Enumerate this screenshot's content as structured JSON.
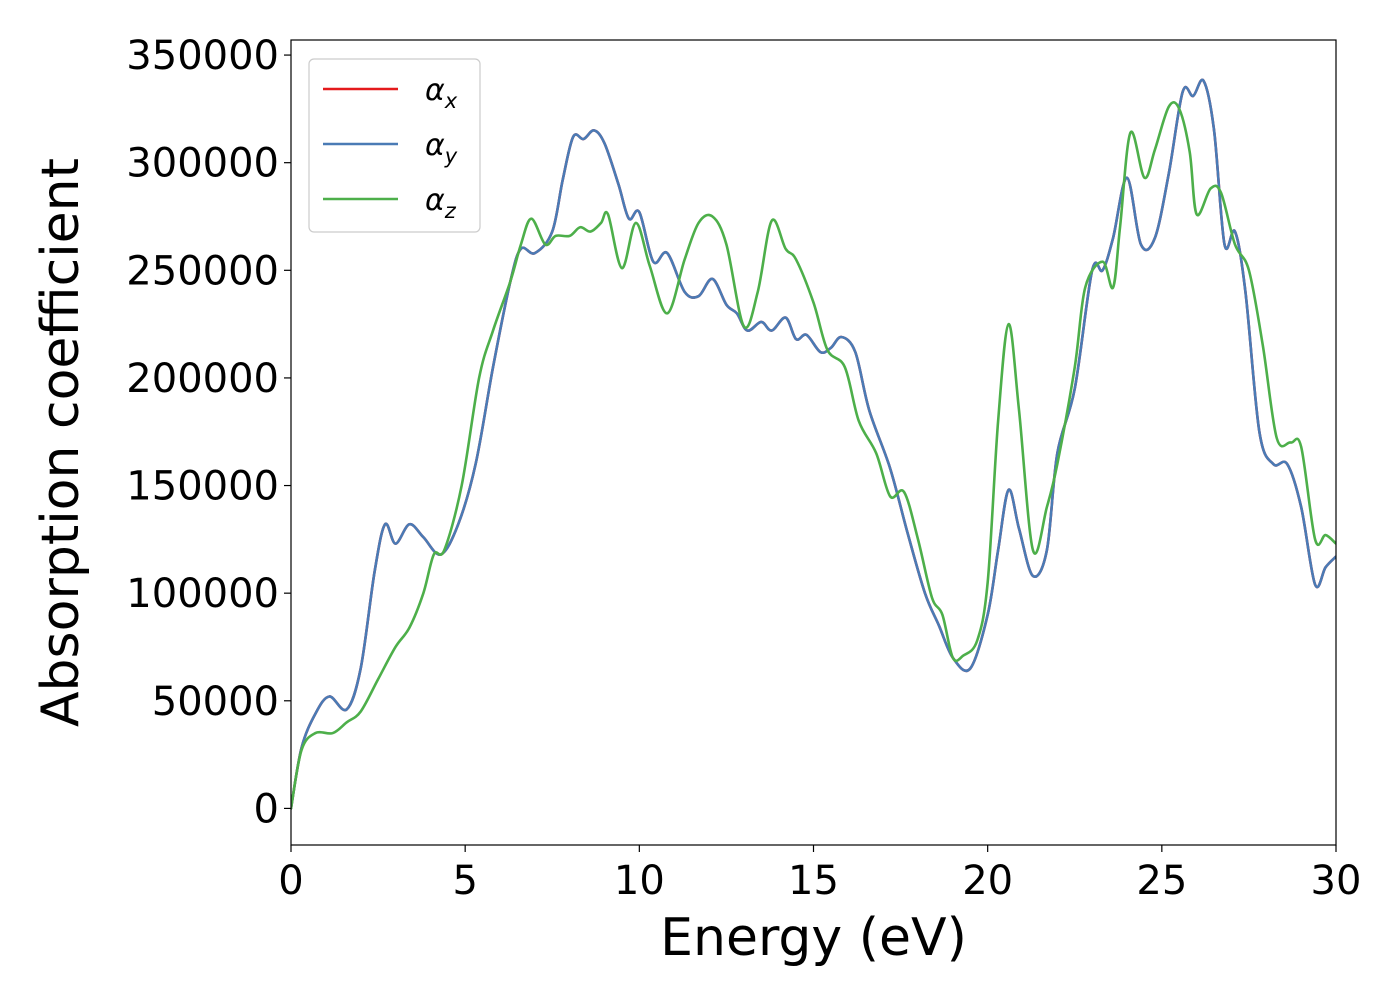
{
  "chart_data": {
    "type": "line",
    "xlabel": "Energy (eV)",
    "ylabel": "Absorption coefficient",
    "xlim": [
      0,
      30
    ],
    "ylim": [
      -17000,
      357000
    ],
    "xticks": [
      "0",
      "5",
      "10",
      "15",
      "20",
      "25",
      "30"
    ],
    "yticks": [
      "0",
      "50000",
      "100000",
      "150000",
      "200000",
      "250000",
      "300000",
      "350000"
    ],
    "grid": false,
    "legend_position": "top-left",
    "series": [
      {
        "name": "αx",
        "legend_base": "α",
        "legend_sub": "x",
        "color": "#e41a1c",
        "points": [
          [
            0,
            0
          ],
          [
            0.3,
            28000
          ],
          [
            0.7,
            44000
          ],
          [
            1.1,
            52000
          ],
          [
            1.6,
            46000
          ],
          [
            2.0,
            65000
          ],
          [
            2.4,
            110000
          ],
          [
            2.7,
            132000
          ],
          [
            3.0,
            123000
          ],
          [
            3.4,
            132000
          ],
          [
            3.8,
            126000
          ],
          [
            4.3,
            118000
          ],
          [
            4.8,
            132000
          ],
          [
            5.3,
            160000
          ],
          [
            5.8,
            205000
          ],
          [
            6.3,
            245000
          ],
          [
            6.6,
            260000
          ],
          [
            7.0,
            258000
          ],
          [
            7.5,
            268000
          ],
          [
            7.8,
            292000
          ],
          [
            8.1,
            312000
          ],
          [
            8.4,
            311000
          ],
          [
            8.7,
            315000
          ],
          [
            9.0,
            309000
          ],
          [
            9.4,
            290000
          ],
          [
            9.7,
            274000
          ],
          [
            10.0,
            277000
          ],
          [
            10.4,
            254000
          ],
          [
            10.8,
            258000
          ],
          [
            11.3,
            240000
          ],
          [
            11.7,
            238000
          ],
          [
            12.1,
            246000
          ],
          [
            12.5,
            234000
          ],
          [
            12.8,
            230000
          ],
          [
            13.1,
            222000
          ],
          [
            13.5,
            226000
          ],
          [
            13.8,
            222000
          ],
          [
            14.2,
            228000
          ],
          [
            14.5,
            218000
          ],
          [
            14.8,
            220000
          ],
          [
            15.2,
            212000
          ],
          [
            15.5,
            214000
          ],
          [
            15.8,
            219000
          ],
          [
            16.2,
            212000
          ],
          [
            16.6,
            185000
          ],
          [
            17.2,
            158000
          ],
          [
            17.7,
            128000
          ],
          [
            18.2,
            100000
          ],
          [
            18.6,
            85000
          ],
          [
            19.0,
            70000
          ],
          [
            19.5,
            65000
          ],
          [
            20.0,
            90000
          ],
          [
            20.3,
            120000
          ],
          [
            20.6,
            148000
          ],
          [
            20.9,
            130000
          ],
          [
            21.3,
            108000
          ],
          [
            21.7,
            120000
          ],
          [
            22.0,
            165000
          ],
          [
            22.5,
            195000
          ],
          [
            23.0,
            250000
          ],
          [
            23.3,
            250000
          ],
          [
            23.6,
            265000
          ],
          [
            24.0,
            293000
          ],
          [
            24.4,
            262000
          ],
          [
            24.8,
            265000
          ],
          [
            25.2,
            295000
          ],
          [
            25.6,
            333000
          ],
          [
            25.9,
            331000
          ],
          [
            26.2,
            338000
          ],
          [
            26.5,
            315000
          ],
          [
            26.8,
            262000
          ],
          [
            27.1,
            268000
          ],
          [
            27.4,
            240000
          ],
          [
            27.8,
            175000
          ],
          [
            28.2,
            160000
          ],
          [
            28.6,
            160000
          ],
          [
            29.0,
            140000
          ],
          [
            29.4,
            104000
          ],
          [
            29.7,
            112000
          ],
          [
            30.0,
            117000
          ]
        ]
      },
      {
        "name": "αy",
        "legend_base": "α",
        "legend_sub": "y",
        "color": "#4a7bb5",
        "points": [
          [
            0,
            0
          ],
          [
            0.3,
            28000
          ],
          [
            0.7,
            44000
          ],
          [
            1.1,
            52000
          ],
          [
            1.6,
            46000
          ],
          [
            2.0,
            65000
          ],
          [
            2.4,
            110000
          ],
          [
            2.7,
            132000
          ],
          [
            3.0,
            123000
          ],
          [
            3.4,
            132000
          ],
          [
            3.8,
            126000
          ],
          [
            4.3,
            118000
          ],
          [
            4.8,
            132000
          ],
          [
            5.3,
            160000
          ],
          [
            5.8,
            205000
          ],
          [
            6.3,
            245000
          ],
          [
            6.6,
            260000
          ],
          [
            7.0,
            258000
          ],
          [
            7.5,
            268000
          ],
          [
            7.8,
            292000
          ],
          [
            8.1,
            312000
          ],
          [
            8.4,
            311000
          ],
          [
            8.7,
            315000
          ],
          [
            9.0,
            309000
          ],
          [
            9.4,
            290000
          ],
          [
            9.7,
            274000
          ],
          [
            10.0,
            277000
          ],
          [
            10.4,
            254000
          ],
          [
            10.8,
            258000
          ],
          [
            11.3,
            240000
          ],
          [
            11.7,
            238000
          ],
          [
            12.1,
            246000
          ],
          [
            12.5,
            234000
          ],
          [
            12.8,
            230000
          ],
          [
            13.1,
            222000
          ],
          [
            13.5,
            226000
          ],
          [
            13.8,
            222000
          ],
          [
            14.2,
            228000
          ],
          [
            14.5,
            218000
          ],
          [
            14.8,
            220000
          ],
          [
            15.2,
            212000
          ],
          [
            15.5,
            214000
          ],
          [
            15.8,
            219000
          ],
          [
            16.2,
            212000
          ],
          [
            16.6,
            185000
          ],
          [
            17.2,
            158000
          ],
          [
            17.7,
            128000
          ],
          [
            18.2,
            100000
          ],
          [
            18.6,
            85000
          ],
          [
            19.0,
            70000
          ],
          [
            19.5,
            65000
          ],
          [
            20.0,
            90000
          ],
          [
            20.3,
            120000
          ],
          [
            20.6,
            148000
          ],
          [
            20.9,
            130000
          ],
          [
            21.3,
            108000
          ],
          [
            21.7,
            120000
          ],
          [
            22.0,
            165000
          ],
          [
            22.5,
            195000
          ],
          [
            23.0,
            250000
          ],
          [
            23.3,
            250000
          ],
          [
            23.6,
            265000
          ],
          [
            24.0,
            293000
          ],
          [
            24.4,
            262000
          ],
          [
            24.8,
            265000
          ],
          [
            25.2,
            295000
          ],
          [
            25.6,
            333000
          ],
          [
            25.9,
            331000
          ],
          [
            26.2,
            338000
          ],
          [
            26.5,
            315000
          ],
          [
            26.8,
            262000
          ],
          [
            27.1,
            268000
          ],
          [
            27.4,
            240000
          ],
          [
            27.8,
            175000
          ],
          [
            28.2,
            160000
          ],
          [
            28.6,
            160000
          ],
          [
            29.0,
            140000
          ],
          [
            29.4,
            104000
          ],
          [
            29.7,
            112000
          ],
          [
            30.0,
            117000
          ]
        ]
      },
      {
        "name": "αz",
        "legend_base": "α",
        "legend_sub": "z",
        "color": "#4daf4a",
        "points": [
          [
            0,
            0
          ],
          [
            0.3,
            27000
          ],
          [
            0.7,
            35000
          ],
          [
            1.2,
            35000
          ],
          [
            1.6,
            40000
          ],
          [
            2.0,
            45000
          ],
          [
            2.5,
            60000
          ],
          [
            3.0,
            75000
          ],
          [
            3.4,
            84000
          ],
          [
            3.8,
            100000
          ],
          [
            4.1,
            118000
          ],
          [
            4.4,
            120000
          ],
          [
            4.9,
            150000
          ],
          [
            5.4,
            200000
          ],
          [
            5.8,
            222000
          ],
          [
            6.3,
            245000
          ],
          [
            6.6,
            262000
          ],
          [
            6.9,
            274000
          ],
          [
            7.3,
            262000
          ],
          [
            7.6,
            266000
          ],
          [
            8.0,
            266000
          ],
          [
            8.3,
            270000
          ],
          [
            8.6,
            268000
          ],
          [
            8.9,
            272000
          ],
          [
            9.1,
            276000
          ],
          [
            9.5,
            251000
          ],
          [
            9.9,
            272000
          ],
          [
            10.3,
            252000
          ],
          [
            10.8,
            230000
          ],
          [
            11.3,
            255000
          ],
          [
            11.7,
            272000
          ],
          [
            12.1,
            275000
          ],
          [
            12.5,
            262000
          ],
          [
            13.0,
            224000
          ],
          [
            13.4,
            240000
          ],
          [
            13.8,
            273000
          ],
          [
            14.2,
            260000
          ],
          [
            14.5,
            255000
          ],
          [
            15.0,
            235000
          ],
          [
            15.4,
            213000
          ],
          [
            15.9,
            205000
          ],
          [
            16.3,
            180000
          ],
          [
            16.8,
            165000
          ],
          [
            17.2,
            145000
          ],
          [
            17.6,
            147000
          ],
          [
            18.0,
            125000
          ],
          [
            18.4,
            98000
          ],
          [
            18.7,
            90000
          ],
          [
            19.0,
            70000
          ],
          [
            19.3,
            71000
          ],
          [
            19.7,
            78000
          ],
          [
            20.0,
            105000
          ],
          [
            20.3,
            180000
          ],
          [
            20.6,
            225000
          ],
          [
            20.9,
            185000
          ],
          [
            21.3,
            120000
          ],
          [
            21.7,
            140000
          ],
          [
            22.0,
            160000
          ],
          [
            22.5,
            205000
          ],
          [
            22.8,
            242000
          ],
          [
            23.3,
            254000
          ],
          [
            23.6,
            242000
          ],
          [
            23.8,
            270000
          ],
          [
            24.1,
            314000
          ],
          [
            24.5,
            293000
          ],
          [
            24.8,
            306000
          ],
          [
            25.2,
            326000
          ],
          [
            25.5,
            325000
          ],
          [
            25.8,
            305000
          ],
          [
            26.0,
            276000
          ],
          [
            26.4,
            288000
          ],
          [
            26.7,
            286000
          ],
          [
            27.1,
            262000
          ],
          [
            27.5,
            250000
          ],
          [
            27.9,
            215000
          ],
          [
            28.3,
            172000
          ],
          [
            28.7,
            170000
          ],
          [
            29.0,
            168000
          ],
          [
            29.4,
            125000
          ],
          [
            29.7,
            127000
          ],
          [
            30.0,
            123000
          ]
        ]
      }
    ]
  }
}
